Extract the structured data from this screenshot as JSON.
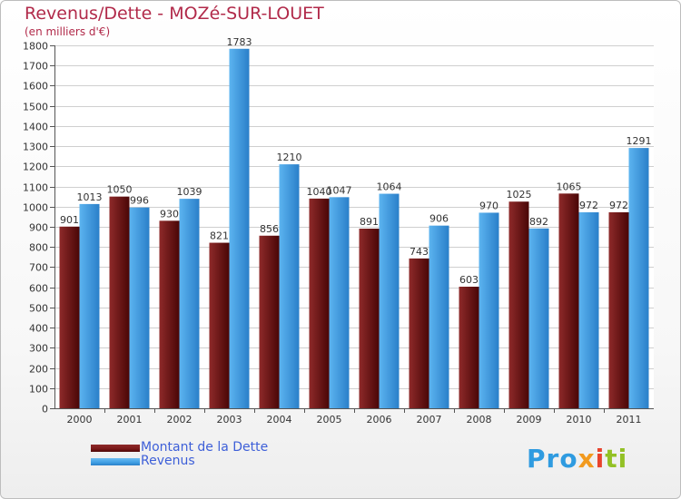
{
  "chart_data": {
    "type": "bar",
    "title": "Revenus/Dette - MOZé-SUR-LOUET",
    "subtitle": "(en milliers d'€)",
    "categories": [
      "2000",
      "2001",
      "2002",
      "2003",
      "2004",
      "2005",
      "2006",
      "2007",
      "2008",
      "2009",
      "2010",
      "2011"
    ],
    "series": [
      {
        "name": "Montant de la Dette",
        "color": "#7a1818",
        "values": [
          901,
          1050,
          930,
          821,
          856,
          1040,
          891,
          743,
          603,
          1025,
          1065,
          972
        ]
      },
      {
        "name": "Revenus",
        "color": "#3f9ee3",
        "values": [
          1013,
          996,
          1039,
          1783,
          1210,
          1047,
          1064,
          906,
          970,
          892,
          972,
          1291
        ]
      }
    ],
    "ylim": [
      0,
      1800
    ],
    "yticks": [
      0,
      100,
      200,
      300,
      400,
      500,
      600,
      700,
      800,
      900,
      1000,
      1100,
      1200,
      1300,
      1400,
      1500,
      1600,
      1700,
      1800
    ],
    "grid": true,
    "legend_position": "bottom-left"
  },
  "brand": {
    "logo_parts": [
      "Pro",
      "x",
      "i",
      "ti"
    ],
    "logo_text": "Proxiti"
  }
}
